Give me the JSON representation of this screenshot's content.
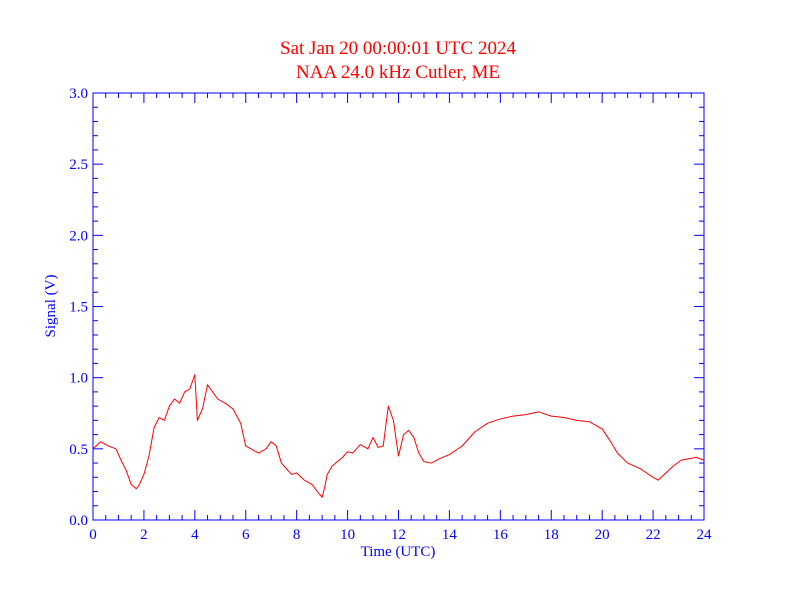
{
  "chart_data": {
    "type": "line",
    "title": "Sat Jan 20 00:00:01 UTC 2024",
    "subtitle": "NAA 24.0 kHz Cutler, ME",
    "xlabel": "Time (UTC)",
    "ylabel": "Signal (V)",
    "xlim": [
      0,
      24
    ],
    "ylim": [
      0.0,
      3.0
    ],
    "x_ticks": [
      "0",
      "2",
      "4",
      "6",
      "8",
      "10",
      "12",
      "14",
      "16",
      "18",
      "20",
      "22",
      "24"
    ],
    "y_ticks": [
      "0.0",
      "0.5",
      "1.0",
      "1.5",
      "2.0",
      "2.5",
      "3.0"
    ],
    "grid": false,
    "colors": {
      "axes": "#0000ff",
      "title": "#ff0000",
      "series": "#ff0000"
    },
    "series": [
      {
        "name": "",
        "x": [
          0.0,
          0.3,
          0.6,
          0.9,
          1.1,
          1.3,
          1.5,
          1.7,
          1.8,
          2.0,
          2.2,
          2.4,
          2.6,
          2.8,
          3.0,
          3.2,
          3.4,
          3.6,
          3.8,
          4.0,
          4.1,
          4.3,
          4.5,
          4.7,
          4.9,
          5.2,
          5.5,
          5.8,
          6.0,
          6.2,
          6.5,
          6.8,
          7.0,
          7.2,
          7.4,
          7.6,
          7.8,
          8.0,
          8.3,
          8.6,
          8.9,
          9.0,
          9.1,
          9.2,
          9.4,
          9.6,
          9.8,
          10.0,
          10.2,
          10.5,
          10.8,
          11.0,
          11.2,
          11.4,
          11.6,
          11.8,
          12.0,
          12.2,
          12.4,
          12.6,
          12.8,
          13.0,
          13.3,
          13.6,
          14.0,
          14.5,
          15.0,
          15.5,
          16.0,
          16.5,
          17.0,
          17.5,
          18.0,
          18.5,
          19.0,
          19.5,
          20.0,
          20.3,
          20.6,
          21.0,
          21.5,
          22.0,
          22.2,
          22.5,
          22.8,
          23.1,
          23.4,
          23.7,
          24.0
        ],
        "values": [
          0.5,
          0.55,
          0.52,
          0.5,
          0.42,
          0.35,
          0.25,
          0.22,
          0.24,
          0.32,
          0.45,
          0.65,
          0.72,
          0.7,
          0.8,
          0.85,
          0.82,
          0.9,
          0.92,
          1.02,
          0.7,
          0.78,
          0.95,
          0.9,
          0.85,
          0.82,
          0.78,
          0.68,
          0.52,
          0.5,
          0.47,
          0.5,
          0.55,
          0.52,
          0.4,
          0.36,
          0.32,
          0.33,
          0.28,
          0.25,
          0.18,
          0.16,
          0.23,
          0.32,
          0.38,
          0.41,
          0.44,
          0.48,
          0.47,
          0.53,
          0.5,
          0.58,
          0.51,
          0.52,
          0.8,
          0.7,
          0.45,
          0.6,
          0.63,
          0.58,
          0.47,
          0.41,
          0.4,
          0.43,
          0.46,
          0.52,
          0.62,
          0.68,
          0.71,
          0.73,
          0.74,
          0.76,
          0.73,
          0.72,
          0.7,
          0.69,
          0.64,
          0.56,
          0.47,
          0.4,
          0.36,
          0.3,
          0.28,
          0.33,
          0.38,
          0.42,
          0.43,
          0.44,
          0.42
        ]
      }
    ]
  }
}
